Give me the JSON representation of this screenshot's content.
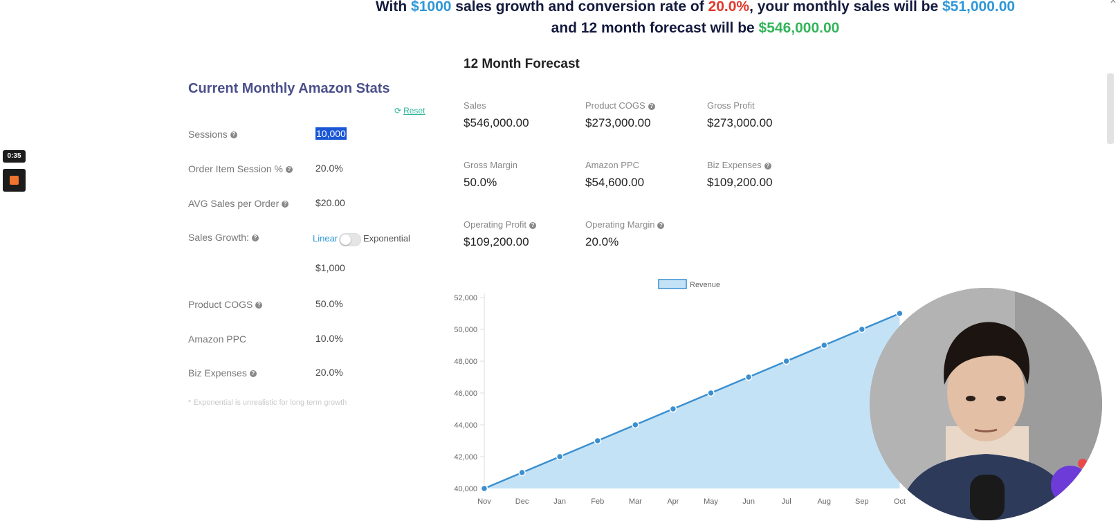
{
  "headline": {
    "p1": "With ",
    "growth": "$1000",
    "p2": " sales growth and conversion rate of ",
    "conversion": "20.0%",
    "p3": ", your monthly sales will be ",
    "monthly_sales": "$51,000.00",
    "p4": " and 12 month forecast will be ",
    "forecast_total": "$546,000.00"
  },
  "colors": {
    "accent_blue": "#2f97d8",
    "accent_red": "#e03a2a",
    "accent_green": "#35b45a",
    "title_purple": "#4b4f8a"
  },
  "left_panel": {
    "title": "Current Monthly Amazon Stats",
    "reset_label": "Reset",
    "reset_icon": "refresh-icon",
    "fields": {
      "sessions": {
        "label": "Sessions",
        "value": "10,000"
      },
      "order_item_session": {
        "label": "Order Item Session %",
        "value": "20.0%"
      },
      "avg_sales": {
        "label": "AVG Sales per Order",
        "value": "$20.00"
      },
      "sales_growth": {
        "label": "Sales Growth:",
        "linear": "Linear",
        "exponential": "Exponential",
        "value": "$1,000"
      },
      "product_cogs": {
        "label": "Product COGS",
        "value": "50.0%"
      },
      "amazon_ppc": {
        "label": "Amazon PPC",
        "value": "10.0%"
      },
      "biz_expenses": {
        "label": "Biz Expenses",
        "value": "20.0%"
      }
    },
    "footnote": "* Exponential is unrealistic for long term growth"
  },
  "forecast": {
    "title": "12 Month Forecast",
    "stats": [
      {
        "label": "Sales",
        "value": "$546,000.00"
      },
      {
        "label": "Product COGS",
        "value": "$273,000.00"
      },
      {
        "label": "Gross Profit",
        "value": "$273,000.00"
      },
      {
        "label": "Gross Margin",
        "value": "50.0%"
      },
      {
        "label": "Amazon PPC",
        "value": "$54,600.00"
      },
      {
        "label": "Biz Expenses",
        "value": "$109,200.00"
      },
      {
        "label": "Operating Profit",
        "value": "$109,200.00"
      },
      {
        "label": "Operating Margin",
        "value": "20.0%"
      }
    ]
  },
  "chart_data": {
    "type": "area",
    "legend": "Revenue",
    "legend_placement": "top-center",
    "categories": [
      "Nov",
      "Dec",
      "Jan",
      "Feb",
      "Mar",
      "Apr",
      "May",
      "Jun",
      "Jul",
      "Aug",
      "Sep",
      "Oct"
    ],
    "series": [
      {
        "name": "Revenue",
        "values": [
          40000,
          41000,
          42000,
          43000,
          44000,
          45000,
          46000,
          47000,
          48000,
          49000,
          50000,
          51000
        ]
      }
    ],
    "ylim": [
      40000,
      52000
    ],
    "yticks": [
      "40,000",
      "42,000",
      "44,000",
      "46,000",
      "48,000",
      "50,000",
      "52,000"
    ],
    "line_color": "#3a8fd0",
    "fill_color": "#c4e2f5"
  },
  "overlay": {
    "timer": "0:35"
  }
}
